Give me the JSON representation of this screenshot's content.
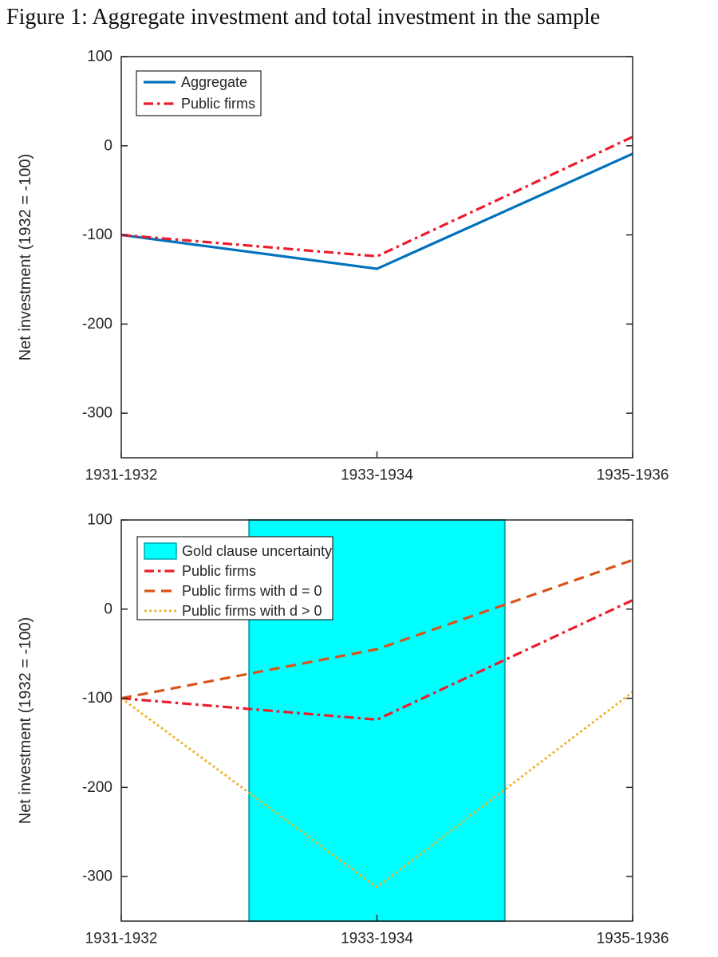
{
  "figure": {
    "caption": "Figure 1: Aggregate investment and total investment in the sample"
  },
  "axis": {
    "color": "#262626",
    "ylabel": "Net investment (1932 = -100)"
  },
  "chart_data": [
    {
      "type": "line",
      "title": "",
      "xlabel": "",
      "ylabel": "Net investment (1932 = -100)",
      "categories": [
        "1931-1932",
        "1933-1934",
        "1935-1936"
      ],
      "ylim": [
        -350,
        100
      ],
      "yticks": [
        100,
        0,
        -100,
        -200,
        -300
      ],
      "grid": false,
      "legend_position": "top-left",
      "series": [
        {
          "name": "Aggregate",
          "values": [
            -100,
            -138,
            -9
          ],
          "color": "#0072bd",
          "style": "solid",
          "width": 3.2
        },
        {
          "name": "Public firms",
          "values": [
            -100,
            -124,
            10
          ],
          "color": "#ec1c2c",
          "style": "dashdot",
          "width": 3.2
        }
      ]
    },
    {
      "type": "line",
      "title": "",
      "xlabel": "",
      "ylabel": "Net investment (1932 = -100)",
      "categories": [
        "1931-1932",
        "1933-1934",
        "1935-1936"
      ],
      "ylim": [
        -350,
        100
      ],
      "yticks": [
        100,
        0,
        -100,
        -200,
        -300
      ],
      "grid": false,
      "legend_position": "top-left",
      "band": {
        "label": "Gold clause uncertainty",
        "x_start": 0.5,
        "x_end": 1.5,
        "fill": "#00ffff",
        "border": "#00a8b0"
      },
      "series": [
        {
          "name": "Public firms",
          "values": [
            -100,
            -124,
            10
          ],
          "color": "#ec1c2c",
          "style": "dashdot",
          "width": 3.2
        },
        {
          "name": "Public firms with d = 0",
          "values": [
            -100,
            -45,
            55
          ],
          "color": "#d95319",
          "style": "dashed",
          "width": 3.2
        },
        {
          "name": "Public firms with d > 0",
          "values": [
            -100,
            -312,
            -93
          ],
          "color": "#edb120",
          "style": "dotted",
          "width": 2.8
        }
      ]
    }
  ]
}
